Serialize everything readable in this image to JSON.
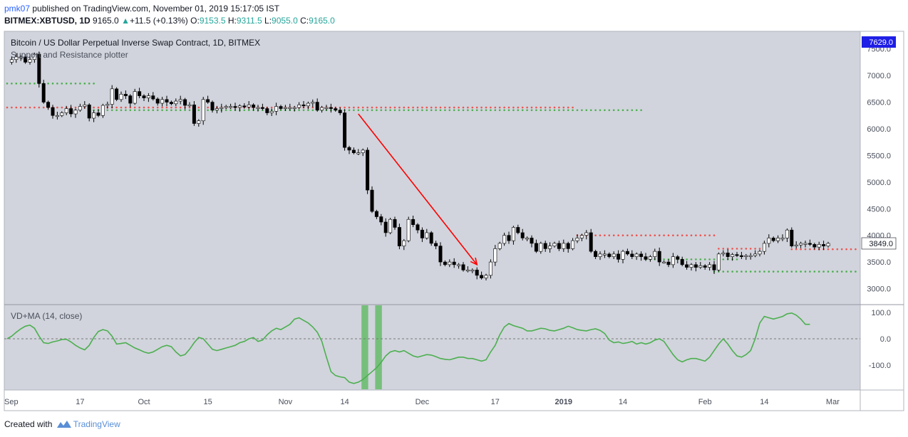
{
  "header": {
    "author": "pmk07",
    "published_text": "published on TradingView.com, November 01, 2019 15:17:05 IST",
    "symbol": "BITMEX:XBTUSD, 1D",
    "last": "9165.0",
    "change_arrow": "▲",
    "change": "+11.5 (+0.13%)",
    "o_label": "O:",
    "o": "9153.5",
    "h_label": "H:",
    "h": "9311.5",
    "l_label": "L:",
    "l": "9055.0",
    "c_label": "C:",
    "c": "9165.0"
  },
  "main_pane": {
    "title": "Bitcoin / US Dollar Perpetual Inverse Swap Contract, 1D, BITMEX",
    "indicator": "Support and Resistance plotter"
  },
  "lower_pane": {
    "title": "VD+MA (14, close)"
  },
  "footer": {
    "created_with": "Created with",
    "brand": "TradingView"
  },
  "colors": {
    "plot_bg": "#d1d4dc",
    "support": "#4caf50",
    "resistance": "#ef5350",
    "arrow": "#ff0000",
    "osc_line": "#4caf50",
    "highlight": "#66bb6a",
    "label_blue": "#1e1ee6"
  },
  "chart_data": [
    {
      "type": "candlestick",
      "title": "Bitcoin / US Dollar Perpetual Inverse Swap Contract, 1D, BITMEX",
      "ylim": [
        2700,
        7830
      ],
      "y_ticks": [
        "7500.0",
        "7000.0",
        "6500.0",
        "6000.0",
        "5500.0",
        "5000.0",
        "4500.0",
        "4000.0",
        "3500.0",
        "3000.0"
      ],
      "y_tick_values": [
        7500,
        7000,
        6500,
        6000,
        5500,
        5000,
        4500,
        4000,
        3500,
        3000
      ],
      "price_labels": [
        {
          "text": "7629.0",
          "value": 7629,
          "style": "blue"
        },
        {
          "text": "3849.0",
          "value": 3849,
          "style": "white"
        }
      ],
      "x_ticks": [
        {
          "label": "Sep",
          "day": 0
        },
        {
          "label": "17",
          "day": 16
        },
        {
          "label": "Oct",
          "day": 30
        },
        {
          "label": "15",
          "day": 44
        },
        {
          "label": "Nov",
          "day": 61
        },
        {
          "label": "14",
          "day": 74
        },
        {
          "label": "Dec",
          "day": 91
        },
        {
          "label": "17",
          "day": 107
        },
        {
          "label": "2019",
          "day": 122
        },
        {
          "label": "14",
          "day": 135
        },
        {
          "label": "Feb",
          "day": 153
        },
        {
          "label": "14",
          "day": 166
        },
        {
          "label": "Mar",
          "day": 181
        }
      ],
      "closes": [
        7250,
        7300,
        7350,
        7350,
        7250,
        7300,
        7400,
        6850,
        6500,
        6400,
        6250,
        6250,
        6300,
        6380,
        6280,
        6350,
        6420,
        6450,
        6200,
        6300,
        6250,
        6440,
        6460,
        6750,
        6550,
        6650,
        6620,
        6480,
        6700,
        6620,
        6580,
        6620,
        6560,
        6480,
        6550,
        6500,
        6470,
        6520,
        6550,
        6440,
        6450,
        6100,
        6150,
        6550,
        6500,
        6350,
        6380,
        6400,
        6420,
        6420,
        6400,
        6430,
        6410,
        6450,
        6400,
        6400,
        6380,
        6300,
        6330,
        6420,
        6380,
        6400,
        6400,
        6400,
        6450,
        6430,
        6480,
        6500,
        6350,
        6400,
        6400,
        6380,
        6350,
        6300,
        5650,
        5600,
        5550,
        5550,
        5600,
        4850,
        4450,
        4350,
        4250,
        4050,
        4300,
        4150,
        3800,
        3900,
        4300,
        4200,
        4100,
        3950,
        4050,
        3850,
        3800,
        3500,
        3450,
        3500,
        3450,
        3450,
        3350,
        3350,
        3350,
        3250,
        3200,
        3250,
        3500,
        3750,
        3850,
        4000,
        3900,
        4150,
        4050,
        3950,
        3950,
        3850,
        3700,
        3850,
        3750,
        3800,
        3850,
        3750,
        3850,
        3750,
        3900,
        3950,
        4000,
        4050,
        3700,
        3600,
        3650,
        3650,
        3600,
        3650,
        3550,
        3700,
        3650,
        3600,
        3650,
        3600,
        3550,
        3600,
        3700,
        3500,
        3500,
        3450,
        3600,
        3550,
        3450,
        3400,
        3450,
        3400,
        3430,
        3400,
        3450,
        3350,
        3650,
        3670,
        3600,
        3640,
        3620,
        3600,
        3620,
        3620,
        3650,
        3700,
        3850,
        3950,
        3900,
        3950,
        3950,
        4100,
        3800,
        3820,
        3850,
        3850,
        3830,
        3780,
        3830,
        3800,
        3849
      ],
      "support_levels": [
        {
          "price": 6850,
          "start_day": 0,
          "end_day": 19
        },
        {
          "price": 6350,
          "start_day": 18,
          "end_day": 139
        },
        {
          "price": 3550,
          "start_day": 140,
          "end_day": 160
        },
        {
          "price": 3320,
          "start_day": 155,
          "end_day": 186
        }
      ],
      "resistance_levels": [
        {
          "price": 6400,
          "start_day": 0,
          "end_day": 124
        },
        {
          "price": 4000,
          "start_day": 125,
          "end_day": 155
        },
        {
          "price": 3750,
          "start_day": 156,
          "end_day": 165
        },
        {
          "price": 3740,
          "start_day": 172,
          "end_day": 186
        }
      ],
      "annotations": [
        {
          "type": "arrow",
          "from": {
            "day": 77,
            "price": 6280
          },
          "to": {
            "day": 103,
            "price": 3450
          }
        }
      ]
    },
    {
      "type": "line",
      "title": "VD+MA (14, close)",
      "ylim": [
        -195,
        130
      ],
      "y_ticks": [
        "100.0",
        "0.0",
        "-100.0"
      ],
      "y_tick_values": [
        100,
        0,
        -100
      ],
      "zero_line": true,
      "values": [
        0,
        10,
        25,
        38,
        48,
        52,
        40,
        10,
        -15,
        -18,
        -12,
        -8,
        -3,
        -2,
        -12,
        -25,
        -35,
        -42,
        -25,
        5,
        28,
        35,
        30,
        10,
        -20,
        -18,
        -15,
        -25,
        -35,
        -42,
        -50,
        -55,
        -50,
        -40,
        -30,
        -25,
        -30,
        -50,
        -65,
        -60,
        -40,
        -15,
        5,
        0,
        -20,
        -40,
        -45,
        -40,
        -35,
        -30,
        -25,
        -15,
        -10,
        0,
        5,
        -10,
        -5,
        15,
        30,
        40,
        35,
        45,
        55,
        75,
        80,
        70,
        60,
        45,
        25,
        -10,
        -70,
        -125,
        -140,
        -145,
        -148,
        -165,
        -170,
        -165,
        -155,
        -140,
        -125,
        -110,
        -90,
        -65,
        -50,
        -45,
        -50,
        -45,
        -55,
        -65,
        -70,
        -65,
        -60,
        -62,
        -68,
        -75,
        -78,
        -80,
        -75,
        -70,
        -70,
        -75,
        -75,
        -80,
        -85,
        -80,
        -50,
        -25,
        15,
        45,
        58,
        50,
        45,
        40,
        30,
        30,
        35,
        40,
        38,
        32,
        30,
        35,
        40,
        48,
        42,
        35,
        32,
        30,
        35,
        38,
        32,
        20,
        -5,
        -15,
        -12,
        -18,
        -15,
        -10,
        -20,
        -15,
        -20,
        -15,
        -5,
        0,
        -10,
        -35,
        -60,
        -80,
        -88,
        -80,
        -75,
        -75,
        -80,
        -85,
        -70,
        -45,
        -20,
        0,
        -20,
        -45,
        -65,
        -70,
        -60,
        -45,
        0,
        60,
        85,
        80,
        75,
        80,
        85,
        95,
        98,
        90,
        75,
        55,
        55
      ],
      "highlight_bars": [
        {
          "start_day": 78,
          "end_day": 79
        },
        {
          "start_day": 81,
          "end_day": 82
        }
      ]
    }
  ]
}
